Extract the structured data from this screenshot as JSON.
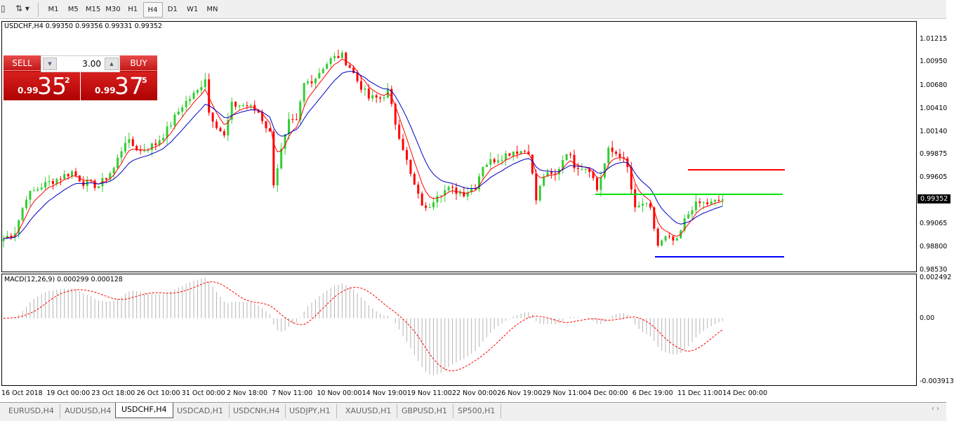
{
  "toolbar": {
    "timeframes": [
      "M1",
      "M5",
      "M15",
      "M30",
      "H1",
      "H4",
      "D1",
      "W1",
      "MN"
    ],
    "active": "H4"
  },
  "chart": {
    "symbol_info": "USDCHF,H4  0.99350 0.99356 0.99331 0.99352",
    "trade_panel": {
      "sell_label": "SELL",
      "buy_label": "BUY",
      "lot": "3.00",
      "sell": {
        "prefix": "0.99",
        "big": "35",
        "sup": "2"
      },
      "buy": {
        "prefix": "0.99",
        "big": "37",
        "sup": "5"
      }
    },
    "price_axis": [
      "1.01215",
      "1.00950",
      "1.00680",
      "1.00410",
      "1.00140",
      "0.99875",
      "0.99605",
      "0.99065",
      "0.98800",
      "0.98530"
    ],
    "current_price": "0.99352",
    "macd_label": "MACD(12,26,9) 0.000299 0.000128",
    "macd_axis": [
      "0.002492",
      "0.00",
      "-0.003913"
    ],
    "time_axis": [
      "16 Oct 2018",
      "19 Oct 00:00",
      "23 Oct 18:00",
      "26 Oct 10:00",
      "31 Oct 00:00",
      "2 Nov 18:00",
      "7 Nov 11:00",
      "10 Nov 00:00",
      "14 Nov 19:00",
      "19 Nov 11:00",
      "22 Nov 00:00",
      "26 Nov 19:00",
      "29 Nov 11:00",
      "4 Dec 00:00",
      "6 Dec 19:00",
      "11 Dec 11:00",
      "14 Dec 00:00"
    ]
  },
  "chart_data": {
    "type": "candlestick",
    "price_range": [
      0.9853,
      1.01215
    ],
    "close_anchors": [
      [
        0,
        0.98898
      ],
      [
        3,
        0.98979
      ],
      [
        6,
        0.99387
      ],
      [
        10,
        0.9951
      ],
      [
        14,
        0.99591
      ],
      [
        18,
        0.99673
      ],
      [
        21,
        0.9955
      ],
      [
        25,
        0.9951
      ],
      [
        29,
        0.99714
      ],
      [
        32,
        1.0004
      ],
      [
        36,
        0.99918
      ],
      [
        40,
        0.99999
      ],
      [
        43,
        1.00162
      ],
      [
        47,
        1.00448
      ],
      [
        51,
        1.00611
      ],
      [
        53,
        1.00774
      ],
      [
        54,
        1.00366
      ],
      [
        58,
        1.00081
      ],
      [
        60,
        1.00448
      ],
      [
        64,
        1.00448
      ],
      [
        67,
        1.00366
      ],
      [
        70,
        1.00122
      ],
      [
        71,
        0.9955
      ],
      [
        73,
        0.99918
      ],
      [
        75,
        1.00244
      ],
      [
        77,
        1.00244
      ],
      [
        79,
        1.00693
      ],
      [
        82,
        1.00774
      ],
      [
        84,
        1.00897
      ],
      [
        86,
        1.00978
      ],
      [
        88,
        1.01019
      ],
      [
        89,
        1.01019
      ],
      [
        91,
        1.00897
      ],
      [
        93,
        1.00734
      ],
      [
        96,
        1.0053
      ],
      [
        99,
        1.0053
      ],
      [
        101,
        1.00611
      ],
      [
        103,
        1.00244
      ],
      [
        105,
        0.99958
      ],
      [
        107,
        0.99632
      ],
      [
        109,
        0.99387
      ],
      [
        111,
        0.99224
      ],
      [
        114,
        0.99428
      ],
      [
        117,
        0.99469
      ],
      [
        121,
        0.99428
      ],
      [
        124,
        0.9951
      ],
      [
        126,
        0.99754
      ],
      [
        130,
        0.99836
      ],
      [
        134,
        0.99918
      ],
      [
        138,
        0.99918
      ],
      [
        140,
        0.99346
      ],
      [
        142,
        0.99632
      ],
      [
        145,
        0.99632
      ],
      [
        148,
        0.99918
      ],
      [
        150,
        0.99754
      ],
      [
        154,
        0.99714
      ],
      [
        156,
        0.99469
      ],
      [
        159,
        0.99918
      ],
      [
        162,
        0.99877
      ],
      [
        164,
        0.99714
      ],
      [
        166,
        0.99224
      ],
      [
        168,
        0.99306
      ],
      [
        170,
        0.99224
      ],
      [
        172,
        0.98816
      ],
      [
        174,
        0.98898
      ],
      [
        177,
        0.98857
      ],
      [
        179,
        0.99102
      ],
      [
        181,
        0.99265
      ],
      [
        183,
        0.99306
      ],
      [
        186,
        0.99306
      ],
      [
        189,
        0.99352
      ]
    ],
    "horizontal_lines": [
      {
        "price": 0.99697,
        "color": "#ff0000"
      },
      {
        "price": 0.99412,
        "color": "#00e000"
      },
      {
        "price": 0.98685,
        "color": "#0000ff"
      }
    ],
    "moving_averages": [
      {
        "color": "#ff0000"
      },
      {
        "color": "#0000c8"
      }
    ],
    "macd": {
      "fast": 12,
      "slow": 26,
      "signal": 9,
      "range": [
        -0.003913,
        0.002492
      ],
      "histogram_color": "#b4b4b4",
      "signal_color": "#ff0000"
    },
    "colors": {
      "bull": "#32cd32",
      "bear": "#ff0000"
    }
  },
  "tabs": [
    "EURUSD,H4",
    "AUDUSD,H4",
    "USDCHF,H4",
    "USDCAD,H1",
    "USDCNH,H4",
    "USDJPY,H1",
    "XAUUSD,H1",
    "GBPUSD,H1",
    "SP500,H1"
  ],
  "active_tab": "USDCHF,H4"
}
